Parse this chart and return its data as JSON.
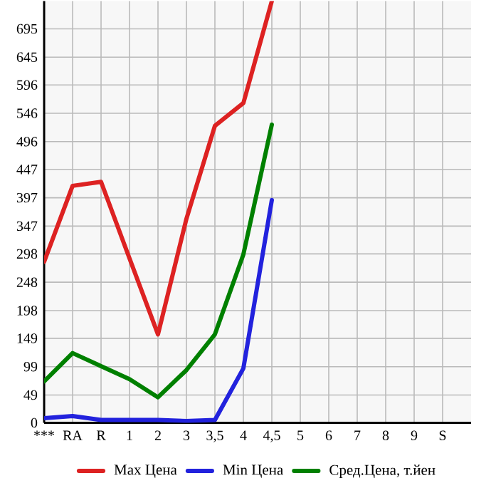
{
  "chart_data": {
    "type": "line",
    "categories": [
      "***",
      "RA",
      "R",
      "1",
      "2",
      "3",
      "3,5",
      "4",
      "4,5",
      "5",
      "6",
      "7",
      "8",
      "9",
      "S"
    ],
    "series": [
      {
        "name": "Max Цена",
        "color": "#dd2222",
        "values": [
          284,
          418,
          425,
          290,
          156,
          360,
          524,
          564,
          744,
          null,
          null,
          null,
          null,
          null,
          null
        ]
      },
      {
        "name": "Min Цена",
        "color": "#2222dd",
        "values": [
          8,
          12,
          5,
          5,
          5,
          3,
          5,
          96,
          393,
          null,
          null,
          null,
          null,
          null,
          null
        ]
      },
      {
        "name": "Сред.Цена, т.йен",
        "color": "#008000",
        "values": [
          73,
          123,
          100,
          77,
          45,
          93,
          156,
          297,
          526,
          null,
          null,
          null,
          null,
          null,
          null
        ]
      }
    ],
    "ylim": [
      0,
      744
    ],
    "yticks": [
      0,
      49,
      99,
      149,
      198,
      248,
      298,
      347,
      397,
      447,
      496,
      546,
      596,
      645,
      695
    ],
    "grid": true,
    "legend": "bottom",
    "marker": "none",
    "line_style": "solid"
  }
}
